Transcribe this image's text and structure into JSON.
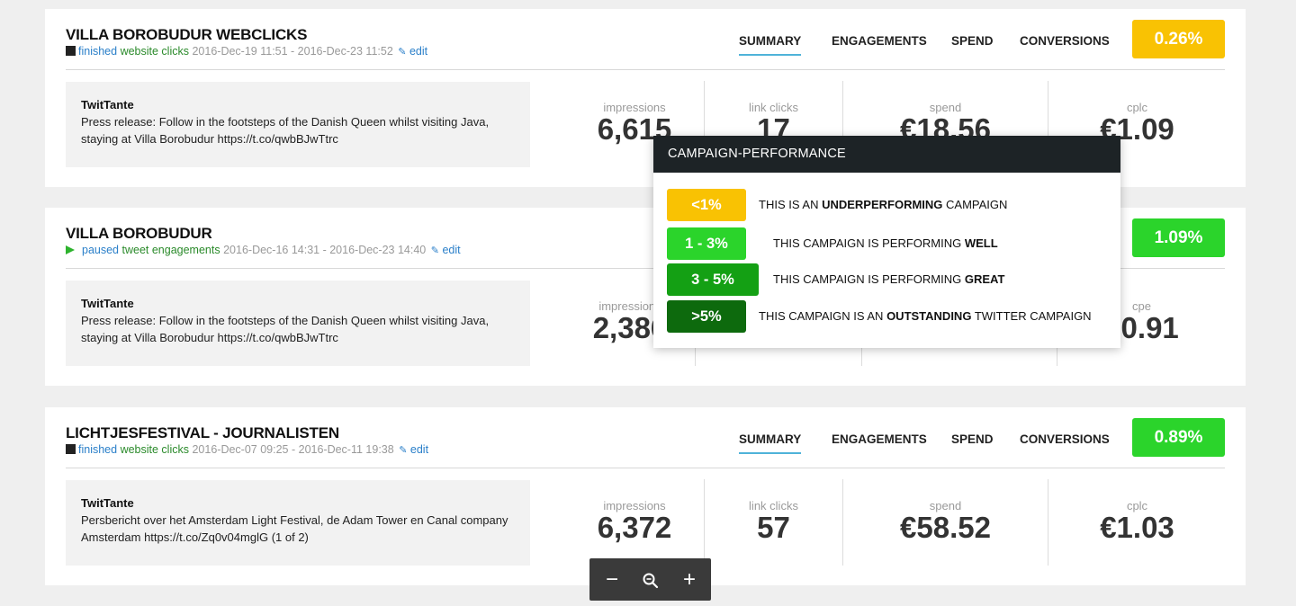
{
  "colors": {
    "under": "#f9c203",
    "well": "#2bd42b",
    "great": "#14a014",
    "outstanding": "#0d6a0d",
    "link": "#2a7fc9",
    "status_green": "#2a8a2a"
  },
  "campaigns": [
    {
      "title": "VILLA BOROBUDUR WEBCLICKS",
      "status": "finished",
      "kind": "website clicks",
      "dates": "2016-Dec-19 11:51 - 2016-Dec-23 11:52",
      "edit": "edit",
      "tabs": [
        "SUMMARY",
        "ENGAGEMENTS",
        "SPEND",
        "CONVERSIONS"
      ],
      "pct": "0.26%",
      "author": "TwitTante",
      "text": "Press release: Follow in the footsteps of the Danish Queen whilst visiting Java, staying at Villa Borobudur https://t.co/qwbBJwTtrc",
      "metrics": [
        {
          "label": "impressions",
          "value": "6,615"
        },
        {
          "label": "link clicks",
          "value": "17"
        },
        {
          "label": "spend",
          "value": "€18.56"
        },
        {
          "label": "cplc",
          "value": "€1.09"
        }
      ]
    },
    {
      "title": "VILLA BOROBUDUR",
      "status": "paused",
      "kind": "tweet engagements",
      "dates": "2016-Dec-16 14:31 - 2016-Dec-23 14:40",
      "edit": "edit",
      "pct": "1.09%",
      "author": "TwitTante",
      "text": "Press release: Follow in the footsteps of the Danish Queen whilst visiting Java, staying at Villa Borobudur https://t.co/qwbBJwTtrc",
      "metrics": [
        {
          "label": "impressions",
          "value": "2,386"
        },
        {
          "label": "cpe",
          "value": "€0.91"
        }
      ]
    },
    {
      "title": "LICHTJESFESTIVAL - JOURNALISTEN",
      "status": "finished",
      "kind": "website clicks",
      "dates": "2016-Dec-07 09:25 - 2016-Dec-11 19:38",
      "edit": "edit",
      "tabs": [
        "SUMMARY",
        "ENGAGEMENTS",
        "SPEND",
        "CONVERSIONS"
      ],
      "pct": "0.89%",
      "author": "TwitTante",
      "text": "Persbericht over het Amsterdam Light Festival, de Adam Tower en Canal company Amsterdam https://t.co/Zq0v04mglG (1 of 2)",
      "metrics": [
        {
          "label": "impressions",
          "value": "6,372"
        },
        {
          "label": "link clicks",
          "value": "57"
        },
        {
          "label": "spend",
          "value": "€58.52"
        },
        {
          "label": "cplc",
          "value": "€1.03"
        }
      ]
    }
  ],
  "popover": {
    "title": "CAMPAIGN-PERFORMANCE",
    "rows": [
      {
        "chip": "<1%",
        "pre": "THIS IS AN ",
        "bold": "UNDERPERFORMING",
        "post": " CAMPAIGN"
      },
      {
        "chip": "1 - 3%",
        "pre": "THIS CAMPAIGN IS PERFORMING ",
        "bold": "WELL",
        "post": ""
      },
      {
        "chip": "3 - 5%",
        "pre": "THIS CAMPAIGN IS PERFORMING ",
        "bold": "GREAT",
        "post": ""
      },
      {
        "chip": ">5%",
        "pre": "THIS CAMPAIGN IS AN ",
        "bold": "OUTSTANDING",
        "post": " TWITTER CAMPAIGN"
      }
    ]
  },
  "zoom": {
    "minus": "−",
    "search": "🔍",
    "plus": "+"
  }
}
